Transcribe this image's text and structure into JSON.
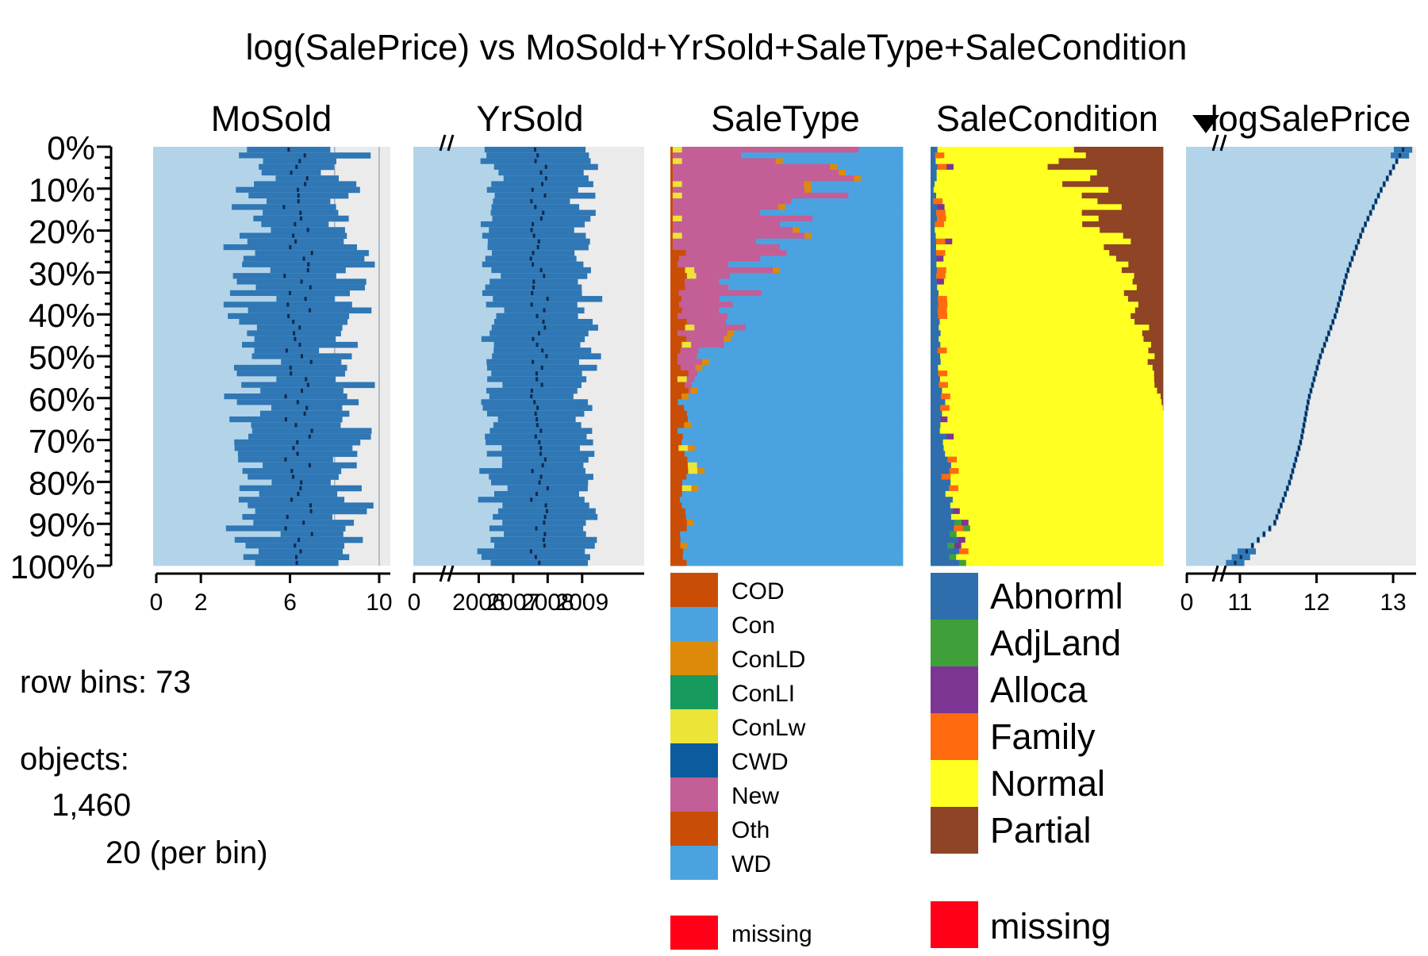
{
  "title": "log(SalePrice) vs MoSold+YrSold+SaleType+SaleCondition",
  "info": {
    "row_bins_label": "row bins: 73",
    "objects_label": "objects:",
    "objects_count": "1,460",
    "per_bin_label": "20 (per bin)"
  },
  "chart_data": {
    "type": "tableplot",
    "title": "log(SalePrice) vs MoSold+YrSold+SaleType+SaleCondition",
    "sort_column": "logSalePrice",
    "sort_direction": "ascending",
    "row_bins": 73,
    "objects": 1460,
    "objects_per_bin": 20,
    "y_axis": {
      "ticks": [
        "0%",
        "10%",
        "20%",
        "30%",
        "40%",
        "50%",
        "60%",
        "70%",
        "80%",
        "90%",
        "100%"
      ]
    },
    "panels": [
      {
        "name": "MoSold",
        "kind": "numeric",
        "ticks": [
          "0",
          "2",
          "6",
          "10"
        ],
        "tick_values": [
          0,
          2,
          6,
          10
        ],
        "range": [
          0,
          10.5
        ],
        "gridlines": [
          2,
          4,
          6,
          8,
          10
        ],
        "mean_range": [
          5.7,
          7.0
        ],
        "sd_range": [
          1.3,
          3.0
        ]
      },
      {
        "name": "YrSold",
        "kind": "numeric",
        "broken_axis": true,
        "ticks": [
          "0",
          "2006",
          "2007",
          "2008",
          "2009"
        ],
        "tick_values": [
          0,
          2006,
          2007,
          2008,
          2009
        ],
        "range": [
          2005,
          2010.8
        ],
        "mean_range": [
          2007.5,
          2008.0
        ],
        "sd_range": [
          1.1,
          1.6
        ]
      },
      {
        "name": "SaleType",
        "kind": "categorical",
        "levels": [
          {
            "name": "COD",
            "color": "#c94d05"
          },
          {
            "name": "Con",
            "color": "#4aa3e0"
          },
          {
            "name": "ConLD",
            "color": "#dd8a0b"
          },
          {
            "name": "ConLI",
            "color": "#169a5d"
          },
          {
            "name": "ConLw",
            "color": "#ece436"
          },
          {
            "name": "CWD",
            "color": "#0b5c9e"
          },
          {
            "name": "New",
            "color": "#c45e96"
          },
          {
            "name": "Oth",
            "color": "#c94d05"
          },
          {
            "name": "WD",
            "color": "#4aa3e0"
          }
        ],
        "missing": {
          "name": "missing",
          "color": "#ff0018"
        },
        "new_share_top_to_bottom": [
          0.6,
          0.3,
          0.0
        ]
      },
      {
        "name": "SaleCondition",
        "kind": "categorical",
        "levels": [
          {
            "name": "Abnorml",
            "color": "#2f6ead"
          },
          {
            "name": "AdjLand",
            "color": "#3fa03a"
          },
          {
            "name": "Alloca",
            "color": "#7c3592"
          },
          {
            "name": "Family",
            "color": "#ff6a0e"
          },
          {
            "name": "Normal",
            "color": "#ffff22"
          },
          {
            "name": "Partial",
            "color": "#8e4425"
          }
        ],
        "missing": {
          "name": "missing",
          "color": "#ff0018"
        },
        "partial_share_top_to_bottom": [
          0.4,
          0.15,
          0.0
        ]
      },
      {
        "name": "logSalePrice",
        "kind": "numeric",
        "broken_axis": true,
        "sorted": true,
        "ticks": [
          "0",
          "11",
          "12",
          "13"
        ],
        "tick_values": [
          0,
          11,
          12,
          13
        ],
        "range": [
          10.4,
          13.3
        ],
        "mean_top": 13.15,
        "mean_bottom": 10.9,
        "mean_curve_quantiles": [
          0.0,
          0.1,
          0.2,
          0.3,
          0.4,
          0.5,
          0.6,
          0.7,
          0.8,
          0.9,
          1.0
        ],
        "mean_curve_values": [
          13.15,
          12.85,
          12.6,
          12.4,
          12.25,
          12.05,
          11.9,
          11.8,
          11.65,
          11.45,
          10.9
        ]
      }
    ]
  }
}
